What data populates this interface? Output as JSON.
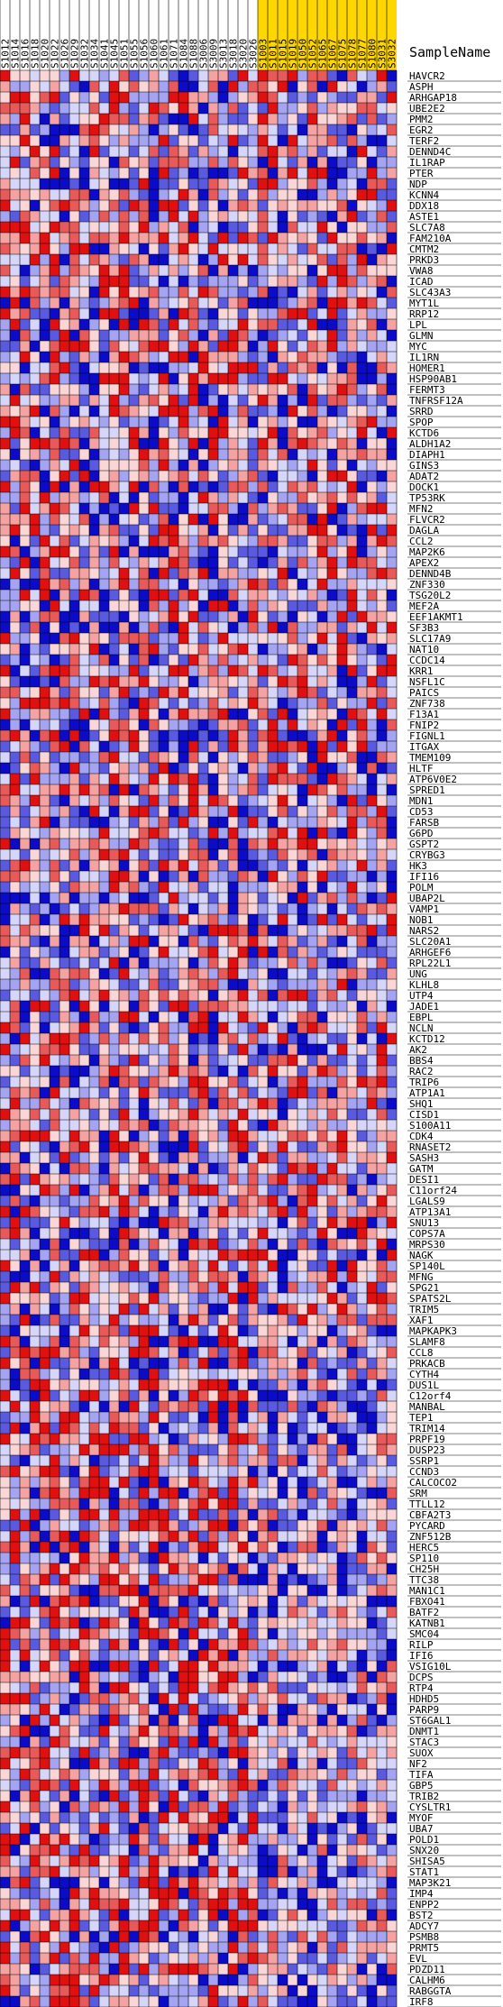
{
  "chart_data": {
    "type": "heatmap",
    "row_header": "SampleName",
    "columns": [
      {
        "name": "S1012",
        "highlight": false
      },
      {
        "name": "S1014",
        "highlight": false
      },
      {
        "name": "S1016",
        "highlight": false
      },
      {
        "name": "S1018",
        "highlight": false
      },
      {
        "name": "S1020",
        "highlight": false
      },
      {
        "name": "S1022",
        "highlight": false
      },
      {
        "name": "S1026",
        "highlight": false
      },
      {
        "name": "S1029",
        "highlight": false
      },
      {
        "name": "S1032",
        "highlight": false
      },
      {
        "name": "S1034",
        "highlight": false
      },
      {
        "name": "S1041",
        "highlight": false
      },
      {
        "name": "S1045",
        "highlight": false
      },
      {
        "name": "S1051",
        "highlight": false
      },
      {
        "name": "S1055",
        "highlight": false
      },
      {
        "name": "S1056",
        "highlight": false
      },
      {
        "name": "S1060",
        "highlight": false
      },
      {
        "name": "S1061",
        "highlight": false
      },
      {
        "name": "S1071",
        "highlight": false
      },
      {
        "name": "S1084",
        "highlight": false
      },
      {
        "name": "S1088",
        "highlight": false
      },
      {
        "name": "S3006",
        "highlight": false
      },
      {
        "name": "S3009",
        "highlight": false
      },
      {
        "name": "S3013",
        "highlight": false
      },
      {
        "name": "S3018",
        "highlight": false
      },
      {
        "name": "S3020",
        "highlight": false
      },
      {
        "name": "S3026",
        "highlight": false
      },
      {
        "name": "S1003",
        "highlight": true
      },
      {
        "name": "S1011",
        "highlight": true
      },
      {
        "name": "S1015",
        "highlight": true
      },
      {
        "name": "S1019",
        "highlight": true
      },
      {
        "name": "S1050",
        "highlight": true
      },
      {
        "name": "S1052",
        "highlight": true
      },
      {
        "name": "S1065",
        "highlight": true
      },
      {
        "name": "S1067",
        "highlight": true
      },
      {
        "name": "S1075",
        "highlight": true
      },
      {
        "name": "S1078",
        "highlight": true
      },
      {
        "name": "S1077",
        "highlight": true
      },
      {
        "name": "S1080",
        "highlight": true
      },
      {
        "name": "S3031",
        "highlight": true
      },
      {
        "name": "S3032",
        "highlight": true
      }
    ],
    "rows": [
      "HAVCR2",
      "ASPH",
      "ARHGAP18",
      "UBE2E2",
      "PMM2",
      "EGR2",
      "TERF2",
      "DENND4C",
      "IL1RAP",
      "PTER",
      "NDP",
      "KCNN4",
      "DDX18",
      "ASTE1",
      "SLC7A8",
      "FAM210A",
      "CMTM2",
      "PRKD3",
      "VWA8",
      "ICAD",
      "SLC43A3",
      "MYT1L",
      "RRP12",
      "LPL",
      "GLMN",
      "MYC",
      "IL1RN",
      "HOMER1",
      "HSP90AB1",
      "FERMT3",
      "TNFRSF12A",
      "SRRD",
      "SPOP",
      "KCTD6",
      "ALDH1A2",
      "DIAPH1",
      "GINS3",
      "ADAT2",
      "DOCK1",
      "TP53RK",
      "MFN2",
      "FLVCR2",
      "DAGLA",
      "CCL2",
      "MAP2K6",
      "APEX2",
      "DENND4B",
      "ZNF330",
      "TSG20L2",
      "MEF2A",
      "EEF1AKMT1",
      "SF3B3",
      "SLC17A9",
      "NAT10",
      "CCDC14",
      "KRR1",
      "NSFL1C",
      "PAICS",
      "ZNF738",
      "F13A1",
      "FNIP2",
      "FIGNL1",
      "ITGAX",
      "TMEM109",
      "HLTF",
      "ATP6V0E2",
      "SPRED1",
      "MDN1",
      "CD53",
      "FARSB",
      "G6PD",
      "GSPT2",
      "CRYBG3",
      "HK3",
      "IFI16",
      "POLM",
      "UBAP2L",
      "VAMP1",
      "NOB1",
      "NARS2",
      "SLC20A1",
      "ARHGEF6",
      "RPL22L1",
      "UNG",
      "KLHL8",
      "UTP4",
      "JADE1",
      "EBPL",
      "NCLN",
      "KCTD12",
      "AK2",
      "BBS4",
      "RAC2",
      "TRIP6",
      "ATP1A1",
      "SHQ1",
      "CISD1",
      "S100A11",
      "CDK4",
      "RNASET2",
      "SASH3",
      "GATM",
      "DESI1",
      "C11orf24",
      "LGALS9",
      "ATP13A1",
      "SNU13",
      "COPS7A",
      "MRPS30",
      "NAGK",
      "SP140L",
      "MFNG",
      "SPG21",
      "SPATS2L",
      "TRIM5",
      "XAF1",
      "MAPKAPK3",
      "SLAMF8",
      "CCL8",
      "PRKACB",
      "CYTH4",
      "DUS1L",
      "C12orf4",
      "MANBAL",
      "TEP1",
      "TRIM14",
      "PRPF19",
      "DUSP23",
      "SSRP1",
      "CCND3",
      "CALCOCO2",
      "SRM",
      "TTLL12",
      "CBFA2T3",
      "PYCARD",
      "ZNF512B",
      "HERC5",
      "SP110",
      "CH25H",
      "TTC38",
      "MAN1C1",
      "FBXO41",
      "BATF2",
      "KATNB1",
      "SMC04",
      "RILP",
      "IFI6",
      "VSIG10L",
      "DCPS",
      "RTP4",
      "HDHD5",
      "PARP9",
      "ST6GAL1",
      "DNMT1",
      "STAC3",
      "SUOX",
      "NF2",
      "TIFA",
      "GBP5",
      "TRIB2",
      "CYSLTR1",
      "MYOF",
      "UBA7",
      "POLD1",
      "SNX20",
      "SHISA5",
      "STAT1",
      "MAP3K21",
      "IMP4",
      "ENPP2",
      "BST2",
      "ADCY7",
      "PSMB8",
      "PRMT5",
      "EVL",
      "PDZD11",
      "CALHM6",
      "RABGGTA",
      "IRF8"
    ],
    "color_scale": [
      "#0b0bc8",
      "#5a5ae0",
      "#a4a4f2",
      "#d6d6fa",
      "#fad6d6",
      "#f4a2a2",
      "#e85a5a",
      "#e01010"
    ],
    "value_range": [
      -3,
      3
    ],
    "highlight_color": "#ffd700",
    "value_note": "individual cell values are not printed in the image"
  }
}
